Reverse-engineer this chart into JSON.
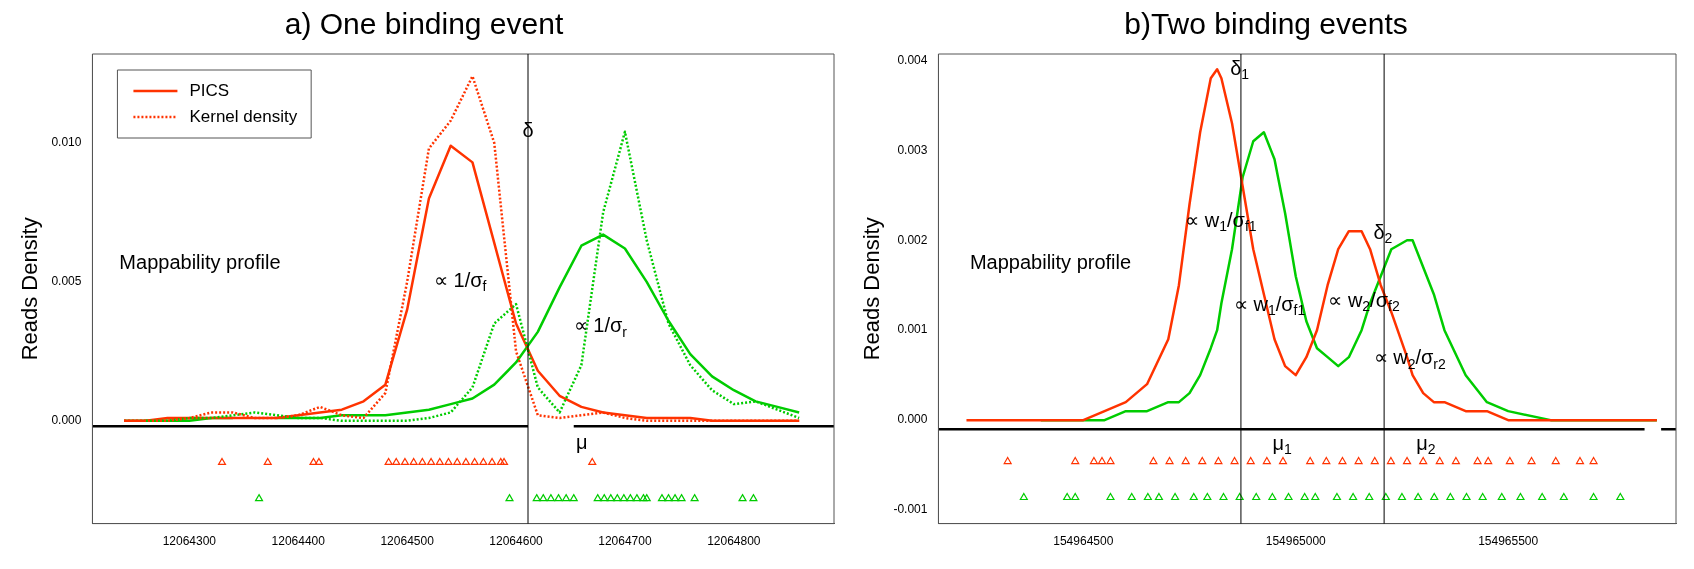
{
  "chart_data": [
    {
      "type": "line",
      "title": "a) One binding event",
      "ylabel": "Reads Density",
      "legend": "top left",
      "x": [
        12064240,
        12064260,
        12064280,
        12064300,
        12064320,
        12064340,
        12064360,
        12064380,
        12064400,
        12064420,
        12064440,
        12064460,
        12064480,
        12064500,
        12064520,
        12064540,
        12064560,
        12064580,
        12064600,
        12064620,
        12064640,
        12064660,
        12064680,
        12064700,
        12064720,
        12064740,
        12064760,
        12064780,
        12064800,
        12064820,
        12064840,
        12064860
      ],
      "xlim": [
        12064211,
        12064892
      ],
      "xticks": [
        12064300,
        12064400,
        12064500,
        12064600,
        12064700,
        12064800
      ],
      "ylim": [
        -0.0037,
        0.0132
      ],
      "yticks": [
        {
          "value": 0,
          "label": "0.000"
        },
        {
          "value": 0.005,
          "label": "0.005"
        },
        {
          "value": 0.01,
          "label": "0.010"
        }
      ],
      "series": [
        {
          "name": "PICS",
          "color": "#ff3300",
          "line_style": "solid",
          "values": [
            0,
            0,
            0.0001,
            0.0001,
            0.0001,
            0.0001,
            0.0001,
            0.0001,
            0.0002,
            0.0003,
            0.0004,
            0.0007,
            0.0013,
            0.004,
            0.008,
            0.0099,
            0.0093,
            0.0064,
            0.0035,
            0.0018,
            0.0009,
            0.0005,
            0.0003,
            0.0002,
            0.0001,
            0.0001,
            0.0001,
            0,
            0,
            0,
            0,
            0
          ]
        },
        {
          "color": "#00cc00",
          "line_style": "solid",
          "values": [
            0,
            0,
            0,
            0,
            0.0001,
            0.0001,
            null,
            0.0001,
            0.0001,
            0.0001,
            0.0002,
            0.0002,
            0.0002,
            0.0003,
            0.0004,
            0.0006,
            0.0008,
            0.0013,
            0.0021,
            0.0032,
            0.0048,
            0.0063,
            0.0067,
            0.0062,
            0.005,
            0.0036,
            0.0024,
            0.0016,
            0.0011,
            0.0007,
            0.0005,
            0.0003
          ]
        },
        {
          "name": "Kernel density",
          "color": "#ff3300",
          "line_style": "dotted",
          "values": [
            0,
            0,
            0,
            0.0001,
            0.0003,
            0.0003,
            0.0001,
            0.0001,
            0.0002,
            0.0005,
            0.0002,
            0.0001,
            0.001,
            0.005,
            0.0098,
            0.0108,
            0.0124,
            0.01,
            0.0025,
            0.0002,
            0.0001,
            0.0002,
            0.0003,
            0.0001,
            0,
            0,
            0,
            0,
            0,
            0,
            0,
            0
          ]
        },
        {
          "color": "#00cc00",
          "line_style": "dotted",
          "values": [
            null,
            0,
            0,
            0.0001,
            0.0001,
            0.0002,
            0.0003,
            0.0002,
            0.0001,
            0.0001,
            0,
            0,
            0,
            0,
            0.0001,
            0.0003,
            0.0012,
            0.0035,
            0.0042,
            0.0012,
            0.0003,
            0.002,
            0.0075,
            0.0104,
            0.0065,
            0.0035,
            0.002,
            0.0011,
            0.0006,
            0.0007,
            0.0004,
            0.0001
          ]
        },
        {
          "color": "#000000",
          "line_style": "solid",
          "x": [
            12064211,
            12064611,
            12064632,
            12064653,
            12064892
          ],
          "values": [
            -0.0002,
            -0.0002,
            null,
            -0.0002,
            -0.0002
          ]
        },
        {
          "type": "scatter",
          "marker": "triangle",
          "color": "#ff3300",
          "x": [
            12064330,
            12064372,
            12064414,
            12064419,
            12064483,
            12064490,
            12064498,
            12064506,
            12064514,
            12064522,
            12064530,
            12064538,
            12064546,
            12064554,
            12064562,
            12064570,
            12064578,
            12064586,
            12064589,
            12064670
          ],
          "values": [
            -0.0015,
            -0.0015,
            -0.0015,
            -0.0015,
            -0.0015,
            -0.0015,
            -0.0015,
            -0.0015,
            -0.0015,
            -0.0015,
            -0.0015,
            -0.0015,
            -0.0015,
            -0.0015,
            -0.0015,
            -0.0015,
            -0.0015,
            -0.0015,
            -0.0015,
            -0.0015
          ]
        },
        {
          "type": "scatter",
          "marker": "triangle",
          "color": "#00cc00",
          "x": [
            12064364,
            12064594,
            12064619,
            12064625,
            12064632,
            12064639,
            12064646,
            12064653,
            12064675,
            12064681,
            12064687,
            12064693,
            12064699,
            12064705,
            12064711,
            12064717,
            12064720,
            12064734,
            12064740,
            12064746,
            12064752,
            12064764,
            12064808,
            12064818
          ],
          "values": [
            -0.0028,
            -0.0028,
            -0.0028,
            -0.0028,
            -0.0028,
            -0.0028,
            -0.0028,
            -0.0028,
            -0.0028,
            -0.0028,
            -0.0028,
            -0.0028,
            -0.0028,
            -0.0028,
            -0.0028,
            -0.0028,
            -0.0028,
            -0.0028,
            -0.0028,
            -0.0028,
            -0.0028,
            -0.0028,
            -0.0028,
            -0.0028
          ]
        }
      ],
      "ref_lines": [
        {
          "axis": "x",
          "value": 12064611,
          "color": "#000000"
        }
      ],
      "annotations": [
        {
          "text": "δ",
          "x": 12064611,
          "y": 0.0104
        },
        "μ",
        "∝ 1/σ$_{f}$",
        "∝ 1/σ$_{r}$",
        "Mappability profile"
      ]
    },
    {
      "type": "line",
      "title": "b)Two binding events",
      "ylabel": "Reads Density",
      "x": [
        154964225,
        154964300,
        154964400,
        154964500,
        154964550,
        154964600,
        154964650,
        154964700,
        154964725,
        154964750,
        154964775,
        154964800,
        154964815,
        154964825,
        154964850,
        154964875,
        154964900,
        154964925,
        154964950,
        154964975,
        154965000,
        154965025,
        154965050,
        154965075,
        154965100,
        154965125,
        154965155,
        154965175,
        154965200,
        154965225,
        154965262,
        154965275,
        154965300,
        154965325,
        154965350,
        154965400,
        154965450,
        154965500,
        154965600,
        154965700,
        154965850
      ],
      "xlim": [
        154964159,
        154965895
      ],
      "xticks": [
        154964500,
        154965000,
        154965500
      ],
      "ylim": [
        -0.00115,
        0.00407
      ],
      "yticks": [
        {
          "value": -0.001,
          "label": "-0.001"
        },
        {
          "value": 0,
          "label": "0.000"
        },
        {
          "value": 0.001,
          "label": "0.001"
        },
        {
          "value": 0.002,
          "label": "0.002"
        },
        {
          "value": 0.003,
          "label": "0.003"
        },
        {
          "value": 0.004,
          "label": "0.004"
        }
      ],
      "series": [
        {
          "color": "#ff3300",
          "line_style": "solid",
          "values": [
            0,
            0,
            0,
            0,
            0.0001,
            0.0002,
            0.0004,
            0.0009,
            0.0015,
            0.0024,
            0.0032,
            0.0038,
            0.0039,
            0.0038,
            0.0033,
            0.0026,
            0.0019,
            0.0014,
            0.0009,
            0.0006,
            0.0005,
            0.0007,
            0.001,
            0.0015,
            0.0019,
            0.0021,
            0.0021,
            0.0019,
            0.0015,
            0.0012,
            0.0007,
            0.0005,
            0.0003,
            0.0002,
            0.0002,
            0.0001,
            0.0001,
            0,
            0,
            0,
            0
          ]
        },
        {
          "color": "#00cc00",
          "line_style": "solid",
          "values": [
            null,
            null,
            0,
            0,
            0,
            0.0001,
            0.0001,
            0.0002,
            0.0002,
            0.0003,
            0.0005,
            0.0008,
            0.001,
            0.0013,
            0.0019,
            0.0027,
            0.0031,
            0.0032,
            0.0029,
            0.0023,
            0.0016,
            0.0011,
            0.0008,
            0.0007,
            0.0006,
            0.0007,
            0.001,
            0.0013,
            0.0016,
            0.0019,
            0.002,
            0.002,
            0.0017,
            0.0014,
            0.001,
            0.0005,
            0.0002,
            0.0001,
            0,
            0,
            0
          ]
        },
        {
          "color": "#000000",
          "line_style": "solid",
          "x": [
            154964159,
            154965821,
            154965840,
            154965860,
            154965895
          ],
          "values": [
            -0.0001,
            -0.0001,
            null,
            -0.0001,
            -0.0001
          ]
        },
        {
          "type": "scatter",
          "marker": "triangle",
          "color": "#ff3300",
          "x": [
            154964322,
            154964481,
            154964525,
            154964544,
            154964564,
            154964665,
            154964703,
            154964741,
            154964780,
            154964818,
            154964856,
            154964894,
            154964932,
            154964970,
            154965034,
            154965072,
            154965110,
            154965148,
            154965186,
            154965224,
            154965262,
            154965300,
            154965339,
            154965377,
            154965428,
            154965453,
            154965504,
            154965555,
            154965612,
            154965669,
            154965701
          ],
          "values": [
            -0.00046,
            -0.00046,
            -0.00046,
            -0.00046,
            -0.00046,
            -0.00046,
            -0.00046,
            -0.00046,
            -0.00046,
            -0.00046,
            -0.00046,
            -0.00046,
            -0.00046,
            -0.00046,
            -0.00046,
            -0.00046,
            -0.00046,
            -0.00046,
            -0.00046,
            -0.00046,
            -0.00046,
            -0.00046,
            -0.00046,
            -0.00046,
            -0.00046,
            -0.00046,
            -0.00046,
            -0.00046,
            -0.00046,
            -0.00046,
            -0.00046
          ]
        },
        {
          "type": "scatter",
          "marker": "triangle",
          "color": "#00cc00",
          "x": [
            154964360,
            154964462,
            154964481,
            154964564,
            154964614,
            154964652,
            154964678,
            154964716,
            154964760,
            154964792,
            154964830,
            154964868,
            154964907,
            154964945,
            154964983,
            154965021,
            154965046,
            154965097,
            154965135,
            154965173,
            154965212,
            154965250,
            154965288,
            154965326,
            154965364,
            154965402,
            154965440,
            154965485,
            154965529,
            154965580,
            154965631,
            154965701,
            154965764
          ],
          "values": [
            -0.00086,
            -0.00086,
            -0.00086,
            -0.00086,
            -0.00086,
            -0.00086,
            -0.00086,
            -0.00086,
            -0.00086,
            -0.00086,
            -0.00086,
            -0.00086,
            -0.00086,
            -0.00086,
            -0.00086,
            -0.00086,
            -0.00086,
            -0.00086,
            -0.00086,
            -0.00086,
            -0.00086,
            -0.00086,
            -0.00086,
            -0.00086,
            -0.00086,
            -0.00086,
            -0.00086,
            -0.00086,
            -0.00086,
            -0.00086,
            -0.00086,
            -0.00086,
            -0.00086
          ]
        }
      ],
      "ref_lines": [
        {
          "axis": "x",
          "value": 154964871,
          "color": "#000000"
        },
        {
          "axis": "x",
          "value": 154965208,
          "color": "#000000"
        }
      ],
      "annotations": [
        {
          "text": "δ$_{1}$",
          "x": 154964868,
          "y": 0.0039
        },
        {
          "text": "δ$_{2}$",
          "x": 154965205,
          "y": 0.00208
        },
        "μ$_{1}$",
        "μ$_{2}$",
        "∝ w$_{1}$/σ$_{f1}$",
        "∝ w$_{1}$/σ$_{f1}$",
        "∝ w$_{2}$/σ$_{f2}$",
        "∝ w$_{2}$/σ$_{r2}$",
        "Mappability profile"
      ]
    }
  ]
}
